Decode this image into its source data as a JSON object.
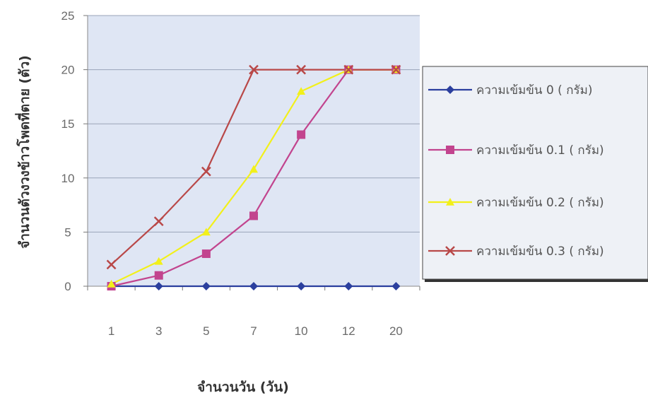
{
  "chart_data": {
    "type": "line",
    "title": "",
    "xlabel": "จำนวนวัน (วัน)",
    "ylabel": "จำนวนตัวงวงข้าวโพดที่ตาย (ตัว)",
    "categories": [
      "1",
      "3",
      "5",
      "7",
      "10",
      "12",
      "20"
    ],
    "ylim": [
      0,
      25
    ],
    "yticks": [
      0,
      5,
      10,
      15,
      20,
      25
    ],
    "grid": true,
    "legend_position": "right",
    "series": [
      {
        "name": "ความเข้มข้น 0 ( กรัม)",
        "values": [
          0,
          0,
          0,
          0,
          0,
          0,
          0
        ],
        "color": "#2b3f9e",
        "marker": "diamond"
      },
      {
        "name": "ความเข้มข้น 0.1 ( กรัม)",
        "values": [
          0,
          1,
          3,
          6.5,
          14,
          20,
          20
        ],
        "color": "#c2448e",
        "marker": "square"
      },
      {
        "name": "ความเข้มข้น 0.2 ( กรัม)",
        "values": [
          0.2,
          2.3,
          5,
          10.8,
          18,
          20,
          20
        ],
        "color": "#f2f01a",
        "marker": "triangle"
      },
      {
        "name": "ความเข้มข้น 0.3 ( กรัม)",
        "values": [
          2,
          6,
          10.6,
          20,
          20,
          20,
          20
        ],
        "color": "#b94848",
        "marker": "x"
      }
    ]
  },
  "colors": {
    "plot_background": "#dfe6f4",
    "gridline": "#9aa3b8",
    "legend_background": "#eef1f6",
    "legend_border": "#444444"
  }
}
